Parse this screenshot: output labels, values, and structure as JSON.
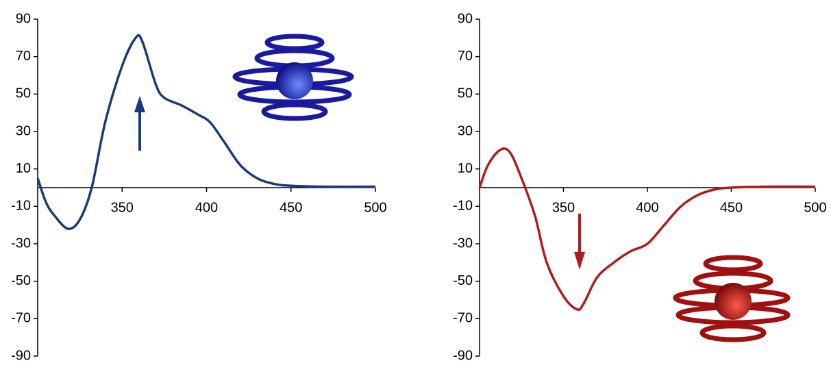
{
  "chart_data": [
    {
      "type": "line",
      "series": [
        {
          "color": "#1a3a7a",
          "x": [
            300,
            305,
            310,
            318,
            325,
            332,
            340,
            350,
            358,
            362,
            370,
            375,
            385,
            395,
            402,
            410,
            420,
            430,
            440,
            450,
            470,
            500
          ],
          "values": [
            5,
            -8,
            -15,
            -22,
            -17,
            0,
            35,
            65,
            80,
            78,
            55,
            48,
            44,
            39,
            35,
            25,
            12,
            5,
            2,
            1,
            0.5,
            0.5
          ]
        }
      ],
      "xlim": [
        300,
        500
      ],
      "xticks": [
        350,
        400,
        450,
        500
      ],
      "ylim": [
        -90,
        90
      ],
      "yticks": [
        -90,
        -70,
        -50,
        -30,
        -10,
        10,
        30,
        50,
        70,
        90
      ]
    },
    {
      "type": "line",
      "series": [
        {
          "color": "#b01c1c",
          "x": [
            300,
            305,
            312,
            318,
            325,
            333,
            340,
            350,
            358,
            362,
            370,
            380,
            390,
            400,
            410,
            420,
            430,
            440,
            450,
            470,
            500
          ],
          "values": [
            0,
            12,
            20,
            19,
            5,
            -15,
            -40,
            -58,
            -65,
            -62,
            -48,
            -40,
            -34,
            -30,
            -20,
            -10,
            -4,
            -1,
            0,
            0.5,
            0.5
          ]
        }
      ],
      "xlim": [
        300,
        500
      ],
      "xticks": [
        350,
        400,
        450,
        500
      ],
      "ylim": [
        -90,
        90
      ],
      "yticks": [
        -90,
        -70,
        -50,
        -30,
        -10,
        10,
        30,
        50,
        70,
        90
      ]
    }
  ]
}
